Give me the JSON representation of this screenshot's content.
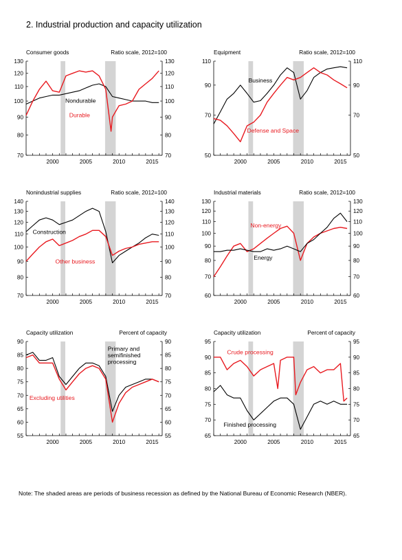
{
  "title": "2.  Industrial production and capacity utilization",
  "note": "Note: The shaded areas are periods of business recession as defined by the National Bureau of Economic Research (NBER).",
  "colors": {
    "red": "#e8191f",
    "black": "#000000",
    "recession": "#d4d4d4"
  },
  "recessions": [
    [
      2001.2,
      2001.9
    ],
    [
      2007.9,
      2009.5
    ]
  ],
  "chart_data": [
    {
      "type": "line",
      "title": "Consumer goods",
      "unit_label": "Ratio scale, 2012=100",
      "scale": "log",
      "ylim": [
        70,
        130
      ],
      "yticks": [
        70,
        80,
        90,
        100,
        110,
        120,
        130
      ],
      "xlim": [
        1996,
        2016.5
      ],
      "xticks": [
        2000,
        2005,
        2010,
        2015
      ],
      "series": [
        {
          "name": "Nondurable",
          "color": "black",
          "x": [
            1996,
            1997,
            1998,
            1999,
            2000,
            2001,
            2002,
            2003,
            2004,
            2005,
            2006,
            2007,
            2008,
            2009,
            2010,
            2011,
            2012,
            2013,
            2014,
            2015,
            2016
          ],
          "y": [
            98,
            100,
            102,
            103,
            104,
            104,
            105,
            106,
            107,
            109,
            111,
            112,
            110,
            103,
            102,
            101,
            100,
            100,
            100,
            99,
            99
          ]
        },
        {
          "name": "Durable",
          "color": "red",
          "x": [
            1996,
            1997,
            1998,
            1999,
            2000,
            2001,
            2002,
            2003,
            2004,
            2005,
            2006,
            2007,
            2008,
            2008.8,
            2009,
            2010,
            2011,
            2012,
            2013,
            2014,
            2015,
            2016
          ],
          "y": [
            91,
            100,
            108,
            114,
            107,
            106,
            118,
            120,
            122,
            121,
            122,
            118,
            108,
            82,
            90,
            97,
            98,
            100,
            108,
            112,
            116,
            122
          ]
        }
      ],
      "labels": [
        {
          "series": "Nondurable",
          "text": "Nondurable",
          "x": 2001.9,
          "y": 99,
          "color": "black"
        },
        {
          "series": "Durable",
          "text": "Durable",
          "x": 2002.5,
          "y": 90,
          "color": "red"
        }
      ]
    },
    {
      "type": "line",
      "title": "Equipment",
      "unit_label": "Ratio scale, 2012=100",
      "scale": "log",
      "ylim": [
        50,
        110
      ],
      "yticks": [
        50,
        70,
        90,
        110
      ],
      "xlim": [
        1996,
        2016.5
      ],
      "xticks": [
        2000,
        2005,
        2010,
        2015
      ],
      "series": [
        {
          "name": "Business",
          "color": "black",
          "x": [
            1996,
            1997,
            1998,
            1999,
            2000,
            2001,
            2002,
            2003,
            2004,
            2005,
            2006,
            2007,
            2008,
            2009,
            2010,
            2011,
            2012,
            2013,
            2014,
            2015,
            2016
          ],
          "y": [
            65,
            72,
            80,
            84,
            90,
            84,
            78,
            79,
            84,
            90,
            98,
            104,
            100,
            80,
            86,
            96,
            100,
            103,
            104,
            105,
            104
          ]
        },
        {
          "name": "Defense and Space",
          "color": "red",
          "x": [
            1996,
            1997,
            1998,
            1999,
            2000,
            2001,
            2002,
            2003,
            2004,
            2005,
            2006,
            2007,
            2008,
            2009,
            2010,
            2011,
            2012,
            2013,
            2014,
            2015,
            2016
          ],
          "y": [
            68,
            67,
            64,
            60,
            56,
            64,
            66,
            70,
            78,
            84,
            90,
            96,
            94,
            96,
            100,
            104,
            100,
            98,
            94,
            91,
            88
          ]
        }
      ],
      "labels": [
        {
          "series": "Business",
          "text": "Business",
          "x": 2001.2,
          "y": 92,
          "color": "black"
        },
        {
          "series": "Defense and Space",
          "text": "Defense and Space",
          "x": 2001.0,
          "y": 60.5,
          "color": "red"
        }
      ]
    },
    {
      "type": "line",
      "title": "Nonindustrial supplies",
      "unit_label": "Ratio scale, 2012=100",
      "scale": "log",
      "ylim": [
        70,
        140
      ],
      "yticks": [
        70,
        80,
        90,
        100,
        110,
        120,
        130,
        140
      ],
      "xlim": [
        1996,
        2016.5
      ],
      "xticks": [
        2000,
        2005,
        2010,
        2015
      ],
      "series": [
        {
          "name": "Construction",
          "color": "black",
          "x": [
            1996,
            1997,
            1998,
            1999,
            2000,
            2001,
            2002,
            2003,
            2004,
            2005,
            2006,
            2007,
            2008,
            2009,
            2010,
            2011,
            2012,
            2013,
            2014,
            2015,
            2016
          ],
          "y": [
            112,
            117,
            122,
            124,
            122,
            118,
            120,
            122,
            126,
            130,
            133,
            130,
            112,
            89,
            94,
            97,
            100,
            103,
            107,
            110,
            109
          ]
        },
        {
          "name": "Other business",
          "color": "red",
          "x": [
            1996,
            1997,
            1998,
            1999,
            2000,
            2001,
            2002,
            2003,
            2004,
            2005,
            2006,
            2007,
            2008,
            2009,
            2010,
            2011,
            2012,
            2013,
            2014,
            2015,
            2016
          ],
          "y": [
            90,
            95,
            100,
            104,
            106,
            101,
            103,
            105,
            108,
            110,
            113,
            113,
            108,
            94,
            97,
            99,
            100,
            102,
            103,
            104,
            104
          ]
        }
      ],
      "labels": [
        {
          "series": "Construction",
          "text": "Construction",
          "x": 1997.0,
          "y": 110,
          "color": "black"
        },
        {
          "series": "Other business",
          "text": "Other business",
          "x": 2000.4,
          "y": 88.5,
          "color": "red"
        }
      ]
    },
    {
      "type": "line",
      "title": "Industrial materials",
      "unit_label": "Ratio scale, 2012=100",
      "scale": "log",
      "ylim": [
        60,
        130
      ],
      "yticks": [
        60,
        70,
        80,
        90,
        100,
        110,
        120,
        130
      ],
      "xlim": [
        1996,
        2016.5
      ],
      "xticks": [
        2000,
        2005,
        2010,
        2015
      ],
      "series": [
        {
          "name": "Non-energy",
          "color": "red",
          "x": [
            1996,
            1997,
            1998,
            1999,
            2000,
            2001,
            2002,
            2003,
            2004,
            2005,
            2006,
            2007,
            2008,
            2009,
            2010,
            2011,
            2012,
            2013,
            2014,
            2015,
            2016
          ],
          "y": [
            70,
            76,
            83,
            90,
            92,
            86,
            88,
            92,
            96,
            100,
            104,
            106,
            100,
            80,
            92,
            97,
            100,
            102,
            104,
            105,
            104
          ]
        },
        {
          "name": "Energy",
          "color": "black",
          "x": [
            1996,
            1997,
            1998,
            1999,
            2000,
            2001,
            2002,
            2003,
            2004,
            2005,
            2006,
            2007,
            2008,
            2009,
            2010,
            2011,
            2012,
            2013,
            2014,
            2015,
            2016
          ],
          "y": [
            86,
            86,
            87,
            87,
            88,
            87,
            86,
            86,
            88,
            87,
            88,
            90,
            88,
            86,
            92,
            95,
            100,
            105,
            113,
            118,
            110
          ]
        }
      ],
      "labels": [
        {
          "series": "Non-energy",
          "text": "Non-energy",
          "x": 2001.5,
          "y": 105,
          "color": "red"
        },
        {
          "series": "Energy",
          "text": "Energy",
          "x": 2002.0,
          "y": 80.5,
          "color": "black"
        }
      ]
    },
    {
      "type": "line",
      "title": "Capacity utilization",
      "unit_label": "Percent of capacity",
      "scale": "linear",
      "ylim": [
        55,
        90
      ],
      "yticks": [
        55,
        60,
        65,
        70,
        75,
        80,
        85,
        90
      ],
      "xlim": [
        1996,
        2016.5
      ],
      "xticks": [
        2000,
        2005,
        2010,
        2015
      ],
      "series": [
        {
          "name": "Primary and semifinished processing",
          "color": "black",
          "x": [
            1996,
            1997,
            1998,
            1999,
            2000,
            2001,
            2002,
            2003,
            2004,
            2005,
            2006,
            2007,
            2008,
            2009,
            2010,
            2011,
            2012,
            2013,
            2014,
            2015,
            2016
          ],
          "y": [
            85,
            86,
            83,
            83,
            84,
            77,
            74,
            77,
            80,
            82,
            82,
            81,
            77,
            64,
            70,
            73,
            74,
            75,
            76,
            76,
            75
          ]
        },
        {
          "name": "Excluding utilities",
          "color": "red",
          "x": [
            1996,
            1997,
            1998,
            1999,
            2000,
            2001,
            2002,
            2003,
            2004,
            2005,
            2006,
            2007,
            2008,
            2009,
            2010,
            2011,
            2012,
            2013,
            2014,
            2015,
            2016
          ],
          "y": [
            84,
            85,
            82,
            82,
            82,
            76,
            72,
            75,
            78,
            80,
            81,
            80,
            76,
            60,
            67,
            71,
            73,
            74,
            75,
            76,
            75
          ]
        }
      ],
      "labels": [
        {
          "series": "Primary and semifinished processing",
          "lines": [
            "Primary and",
            "semifinished",
            "processing"
          ],
          "x": 2008.3,
          "y": 86.5,
          "color": "black"
        },
        {
          "series": "Excluding utilities",
          "text": "Excluding utilities",
          "x": 1996.5,
          "y": 68.3,
          "color": "red"
        }
      ]
    },
    {
      "type": "line",
      "title": "Capacity utilization",
      "unit_label": "Percent of capacity",
      "scale": "linear",
      "ylim": [
        65,
        95
      ],
      "yticks": [
        65,
        70,
        75,
        80,
        85,
        90,
        95
      ],
      "xlim": [
        1996,
        2016.5
      ],
      "xticks": [
        2000,
        2005,
        2010,
        2015
      ],
      "series": [
        {
          "name": "Crude processing",
          "color": "red",
          "x": [
            1996,
            1997,
            1998,
            1999,
            2000,
            2001,
            2002,
            2003,
            2004,
            2005,
            2005.6,
            2006,
            2007,
            2008,
            2008.3,
            2009,
            2010,
            2011,
            2012,
            2013,
            2014,
            2015,
            2015.5,
            2016
          ],
          "y": [
            90,
            90,
            86,
            88,
            89,
            87,
            84,
            86,
            87,
            88,
            80,
            89,
            90,
            90,
            78,
            82,
            86,
            87,
            85,
            86,
            86,
            88,
            76,
            77
          ]
        },
        {
          "name": "Finished processing",
          "color": "black",
          "x": [
            1996,
            1997,
            1998,
            1999,
            2000,
            2001,
            2002,
            2003,
            2004,
            2005,
            2006,
            2007,
            2008,
            2009,
            2010,
            2011,
            2012,
            2013,
            2014,
            2015,
            2016
          ],
          "y": [
            79,
            81,
            78,
            77,
            77,
            73,
            70,
            72,
            74,
            76,
            77,
            77,
            75,
            67,
            71,
            75,
            76,
            75,
            76,
            75,
            75
          ]
        }
      ],
      "labels": [
        {
          "series": "Crude processing",
          "text": "Crude processing",
          "x": 1998.0,
          "y": 91,
          "color": "red"
        },
        {
          "series": "Finished processing",
          "text": "Finished processing",
          "x": 1997.5,
          "y": 67.8,
          "color": "black"
        }
      ]
    }
  ]
}
